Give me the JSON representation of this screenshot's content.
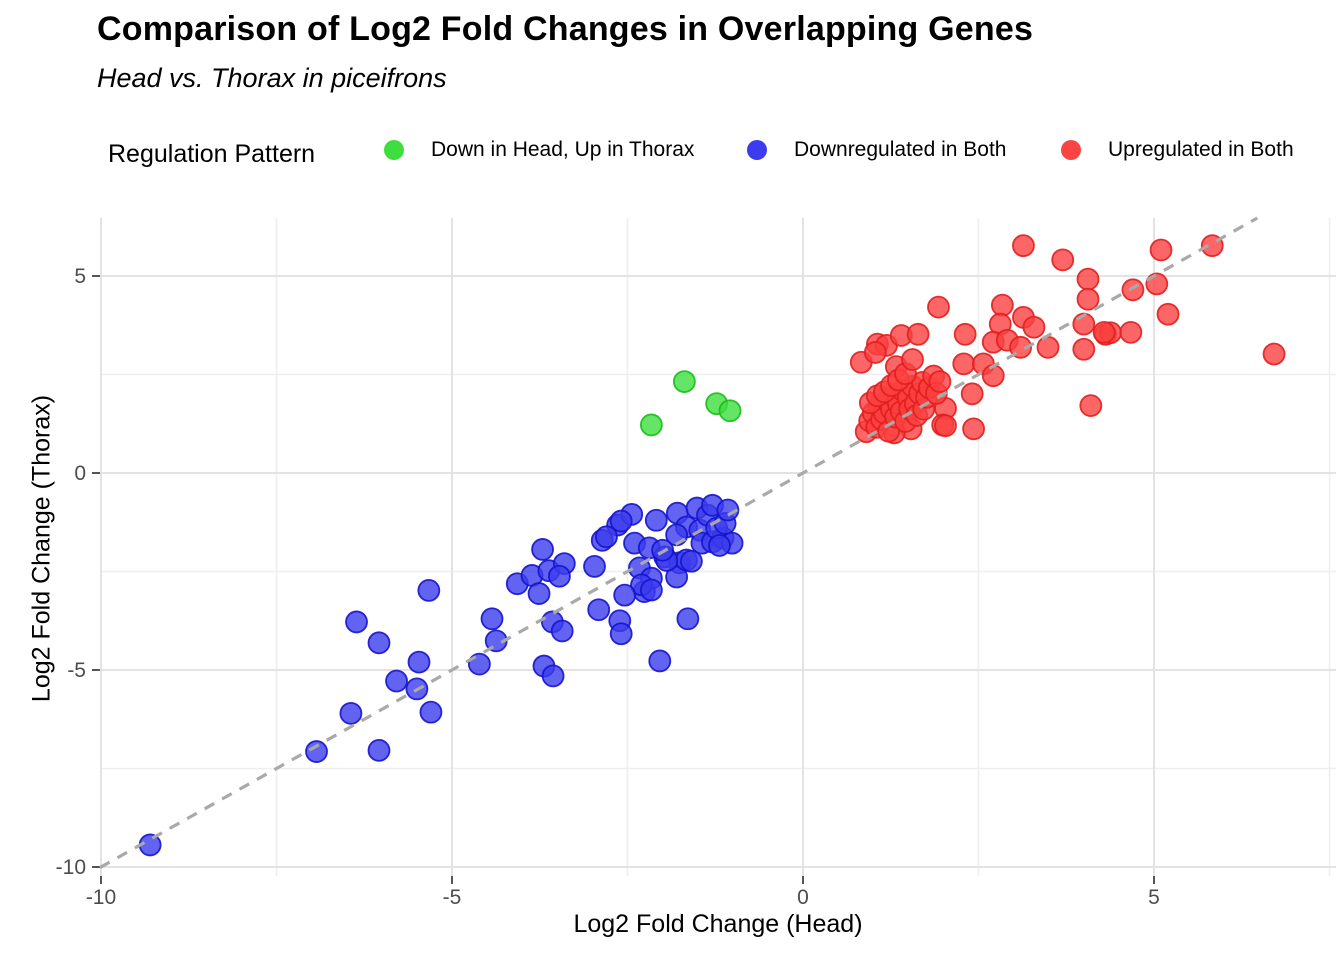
{
  "title": "Comparison of Log2 Fold Changes in Overlapping Genes",
  "subtitle": "Head vs. Thorax in piceifrons",
  "legend": {
    "title": "Regulation Pattern",
    "items": [
      {
        "label": "Down in Head, Up in Thorax",
        "color": "#3ede3e"
      },
      {
        "label": "Downregulated in Both",
        "color": "#3c3cee"
      },
      {
        "label": "Upregulated in Both",
        "color": "#f84444"
      }
    ]
  },
  "axes": {
    "xlabel": "Log2 Fold Change (Head)",
    "ylabel": "Log2 Fold Change (Thorax)",
    "x_tick_labels": [
      "-10",
      "-5",
      "0",
      "5"
    ],
    "y_tick_labels": [
      "5",
      "0",
      "-5",
      "-10"
    ]
  },
  "chart_data": {
    "type": "scatter",
    "title": "Comparison of Log2 Fold Changes in Overlapping Genes",
    "subtitle": "Head vs. Thorax in piceifrons",
    "xlabel": "Log2 Fold Change (Head)",
    "ylabel": "Log2 Fold Change (Thorax)",
    "xlim": [
      -10.1,
      7.6
    ],
    "ylim": [
      -10.3,
      6.5
    ],
    "xticks": [
      -10,
      -5,
      0,
      5
    ],
    "yticks": [
      5,
      0,
      -5,
      -10
    ],
    "minor_xticks": [
      -7.5,
      -2.5,
      2.5,
      7.5
    ],
    "minor_yticks": [
      2.5,
      -2.5,
      -7.5
    ],
    "grid": true,
    "legend_position": "top",
    "reference_line": {
      "type": "identity y=x",
      "style": "dashed",
      "color": "#a9a9a9"
    },
    "series": [
      {
        "name": "Down in Head, Up in Thorax",
        "fill": "#3ede3e",
        "stroke": "#18bc18",
        "points": [
          [
            -2.16,
            1.22
          ],
          [
            -1.69,
            2.32
          ],
          [
            -1.23,
            1.76
          ],
          [
            -1.04,
            1.58
          ]
        ]
      },
      {
        "name": "Downregulated in Both",
        "fill": "#3c3cee",
        "stroke": "#1414cd",
        "points": [
          [
            -9.3,
            -9.44
          ],
          [
            -6.93,
            -7.07
          ],
          [
            -6.04,
            -7.04
          ],
          [
            -6.44,
            -6.1
          ],
          [
            -5.3,
            -6.07
          ],
          [
            -5.79,
            -5.28
          ],
          [
            -5.5,
            -5.48
          ],
          [
            -5.47,
            -4.8
          ],
          [
            -6.04,
            -4.31
          ],
          [
            -6.36,
            -3.78
          ],
          [
            -5.33,
            -2.98
          ],
          [
            -4.43,
            -3.7
          ],
          [
            -4.37,
            -4.26
          ],
          [
            -4.61,
            -4.85
          ],
          [
            -4.07,
            -2.81
          ],
          [
            -3.86,
            -2.6
          ],
          [
            -3.62,
            -2.48
          ],
          [
            -3.76,
            -3.06
          ],
          [
            -3.57,
            -3.78
          ],
          [
            -3.43,
            -4.01
          ],
          [
            -3.69,
            -4.9
          ],
          [
            -3.56,
            -5.15
          ],
          [
            -2.91,
            -3.47
          ],
          [
            -2.61,
            -3.75
          ],
          [
            -2.59,
            -4.08
          ],
          [
            -2.26,
            -3.01
          ],
          [
            -1.64,
            -3.7
          ],
          [
            -2.04,
            -4.77
          ],
          [
            -3.4,
            -2.3
          ],
          [
            -2.97,
            -2.37
          ],
          [
            -3.71,
            -1.94
          ],
          [
            -3.47,
            -2.62
          ],
          [
            -2.86,
            -1.71
          ],
          [
            -2.64,
            -1.32
          ],
          [
            -2.8,
            -1.62
          ],
          [
            -2.44,
            -1.05
          ],
          [
            -2.4,
            -1.78
          ],
          [
            -2.33,
            -2.41
          ],
          [
            -2.19,
            -1.9
          ],
          [
            -2.16,
            -2.67
          ],
          [
            -2.3,
            -2.84
          ],
          [
            -2.16,
            -2.97
          ],
          [
            -2.54,
            -3.1
          ],
          [
            -1.97,
            -2.13
          ],
          [
            -1.76,
            -2.28
          ],
          [
            -1.8,
            -2.64
          ],
          [
            -1.66,
            -2.21
          ],
          [
            -2.09,
            -1.2
          ],
          [
            -1.79,
            -1.02
          ],
          [
            -1.66,
            -1.37
          ],
          [
            -1.8,
            -1.57
          ],
          [
            -1.47,
            -1.45
          ],
          [
            -1.44,
            -1.78
          ],
          [
            -1.29,
            -1.75
          ],
          [
            -1.14,
            -1.65
          ],
          [
            -1.01,
            -1.78
          ],
          [
            -1.51,
            -0.89
          ],
          [
            -1.36,
            -1.07
          ],
          [
            -1.29,
            -0.82
          ],
          [
            -1.23,
            -1.4
          ],
          [
            -1.19,
            -1.84
          ],
          [
            -1.11,
            -1.28
          ],
          [
            -1.07,
            -0.94
          ],
          [
            -1.59,
            -2.24
          ],
          [
            -1.94,
            -2.22
          ],
          [
            -2.0,
            -1.96
          ],
          [
            -2.59,
            -1.22
          ]
        ]
      },
      {
        "name": "Upregulated in Both",
        "fill": "#fb4040",
        "stroke": "#e01f1f",
        "points": [
          [
            3.14,
            5.77
          ],
          [
            3.7,
            5.41
          ],
          [
            5.1,
            5.66
          ],
          [
            5.83,
            5.77
          ],
          [
            4.7,
            4.65
          ],
          [
            5.04,
            4.8
          ],
          [
            4.06,
            4.92
          ],
          [
            4.06,
            4.41
          ],
          [
            5.2,
            4.03
          ],
          [
            4.31,
            3.52
          ],
          [
            4.38,
            3.56
          ],
          [
            4.67,
            3.57
          ],
          [
            6.71,
            3.02
          ],
          [
            4.1,
            1.71
          ],
          [
            1.93,
            4.21
          ],
          [
            2.84,
            4.26
          ],
          [
            3.14,
            3.95
          ],
          [
            2.31,
            3.52
          ],
          [
            2.81,
            3.78
          ],
          [
            3.29,
            3.7
          ],
          [
            4.0,
            3.78
          ],
          [
            4.29,
            3.57
          ],
          [
            2.71,
            3.32
          ],
          [
            2.91,
            3.37
          ],
          [
            3.1,
            3.19
          ],
          [
            3.49,
            3.19
          ],
          [
            4.0,
            3.14
          ],
          [
            2.41,
            2.01
          ],
          [
            2.43,
            1.12
          ],
          [
            2.03,
            1.64
          ],
          [
            1.99,
            1.22
          ],
          [
            2.29,
            2.77
          ],
          [
            2.57,
            2.77
          ],
          [
            2.71,
            2.47
          ],
          [
            1.54,
            1.12
          ],
          [
            1.3,
            1.02
          ],
          [
            2.03,
            1.2
          ],
          [
            1.06,
            3.27
          ],
          [
            1.19,
            3.24
          ],
          [
            1.4,
            3.49
          ],
          [
            1.64,
            3.52
          ],
          [
            0.83,
            2.81
          ],
          [
            1.33,
            2.7
          ],
          [
            1.03,
            3.06
          ],
          [
            0.9,
            1.05
          ],
          [
            0.95,
            1.32
          ],
          [
            1.0,
            1.52
          ],
          [
            1.05,
            1.16
          ],
          [
            1.08,
            1.7
          ],
          [
            1.12,
            1.36
          ],
          [
            1.16,
            1.52
          ],
          [
            1.2,
            1.82
          ],
          [
            1.22,
            1.06
          ],
          [
            1.26,
            1.62
          ],
          [
            1.3,
            1.95
          ],
          [
            1.32,
            1.42
          ],
          [
            1.36,
            1.76
          ],
          [
            1.4,
            1.56
          ],
          [
            1.42,
            2.1
          ],
          [
            1.46,
            1.31
          ],
          [
            1.5,
            1.9
          ],
          [
            1.52,
            1.62
          ],
          [
            1.56,
            2.2
          ],
          [
            1.6,
            1.76
          ],
          [
            1.62,
            1.46
          ],
          [
            1.66,
            2.02
          ],
          [
            1.7,
            2.3
          ],
          [
            1.72,
            1.62
          ],
          [
            1.76,
            1.92
          ],
          [
            1.8,
            2.16
          ],
          [
            1.86,
            2.46
          ],
          [
            1.9,
            2.02
          ],
          [
            1.95,
            2.32
          ],
          [
            0.96,
            1.78
          ],
          [
            1.06,
            1.96
          ],
          [
            1.16,
            2.06
          ],
          [
            1.26,
            2.22
          ],
          [
            1.36,
            2.36
          ],
          [
            1.46,
            2.52
          ],
          [
            1.56,
            2.88
          ]
        ]
      }
    ],
    "style": {
      "grid_major_color": "#e3e3e3",
      "grid_minor_color": "#efefef",
      "tick_label_color": "#4d4d4d",
      "tick_mark_color": "#555555",
      "point_radius": 10.5
    }
  }
}
